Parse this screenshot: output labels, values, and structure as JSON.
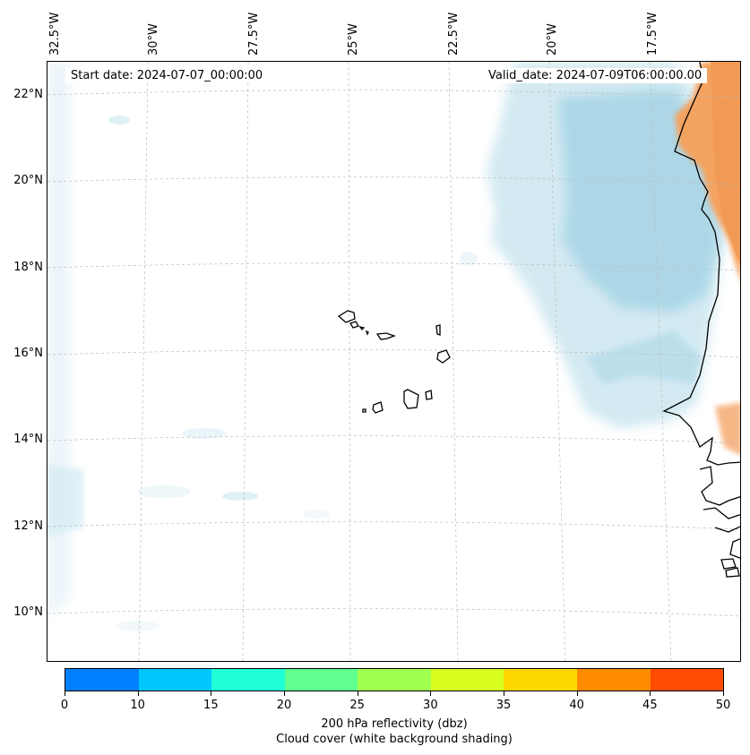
{
  "map": {
    "start_date": "Start date: 2024-07-07_00:00:00",
    "valid_date": "Valid_date: 2024-07-09T06:00:00.00",
    "longitude_labels": [
      "32.5°W",
      "30°W",
      "27.5°W",
      "25°W",
      "22.5°W",
      "20°W",
      "17.5°W"
    ],
    "latitude_labels": [
      "22°N",
      "20°N",
      "18°N",
      "16°N",
      "14°N",
      "12°N",
      "10°N"
    ],
    "features": [
      "cape-verde-islands",
      "west-africa-coastline",
      "cloud-cover-shading",
      "reflectivity-shading"
    ]
  },
  "colorbar": {
    "ticks": [
      "0",
      "10",
      "15",
      "20",
      "25",
      "30",
      "35",
      "40",
      "45",
      "50"
    ],
    "colors": [
      "#0080ff",
      "#00c8ff",
      "#20ffd8",
      "#60ff90",
      "#a0ff50",
      "#d8ff20",
      "#ffd700",
      "#ff8c00",
      "#ff4c00"
    ],
    "label_line1": "200 hPa reflectivity (dbz)",
    "label_line2": "Cloud cover (white background shading)"
  }
}
